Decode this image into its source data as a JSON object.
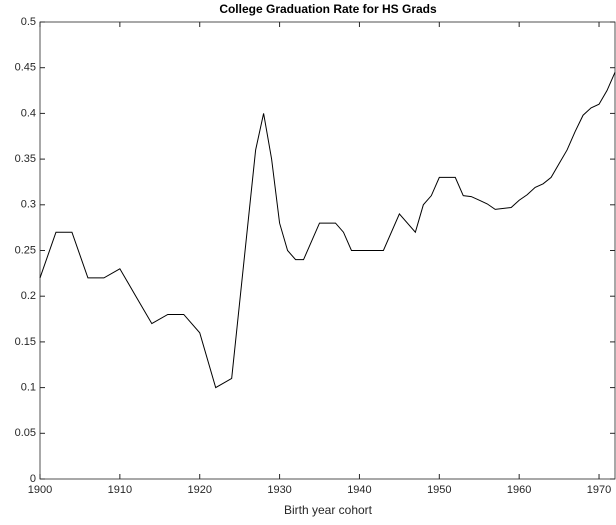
{
  "chart_data": {
    "type": "line",
    "title": "College Graduation Rate for HS Grads",
    "x_label": "Birth year cohort",
    "x": [
      1900,
      1902,
      1904,
      1906,
      1908,
      1910,
      1912,
      1914,
      1916,
      1918,
      1920,
      1922,
      1924,
      1927,
      1928,
      1929,
      1930,
      1931,
      1932,
      1933,
      1935,
      1937,
      1938,
      1939,
      1941,
      1943,
      1945,
      1947,
      1948,
      1949,
      1950,
      1952,
      1953,
      1954,
      1955,
      1956,
      1957,
      1959,
      1960,
      1961,
      1962,
      1963,
      1964,
      1965,
      1966,
      1967,
      1968,
      1969,
      1970,
      1971,
      1972
    ],
    "values": [
      0.22,
      0.27,
      0.27,
      0.22,
      0.22,
      0.23,
      0.2,
      0.17,
      0.18,
      0.18,
      0.16,
      0.1,
      0.11,
      0.36,
      0.4,
      0.35,
      0.28,
      0.25,
      0.24,
      0.24,
      0.28,
      0.28,
      0.27,
      0.25,
      0.25,
      0.25,
      0.29,
      0.27,
      0.3,
      0.31,
      0.33,
      0.33,
      0.31,
      0.309,
      0.305,
      0.301,
      0.295,
      0.297,
      0.305,
      0.311,
      0.319,
      0.323,
      0.33,
      0.345,
      0.36,
      0.38,
      0.398,
      0.406,
      0.41,
      0.425,
      0.445
    ],
    "color": "#000000",
    "xlim": [
      1900,
      1972
    ],
    "xticks": [
      1900,
      1910,
      1920,
      1930,
      1940,
      1950,
      1960,
      1970
    ],
    "ylim": [
      0,
      0.5
    ],
    "yticks": [
      0,
      0.05,
      0.1,
      0.15,
      0.2,
      0.25,
      0.3,
      0.35,
      0.4,
      0.45,
      0.5
    ]
  }
}
